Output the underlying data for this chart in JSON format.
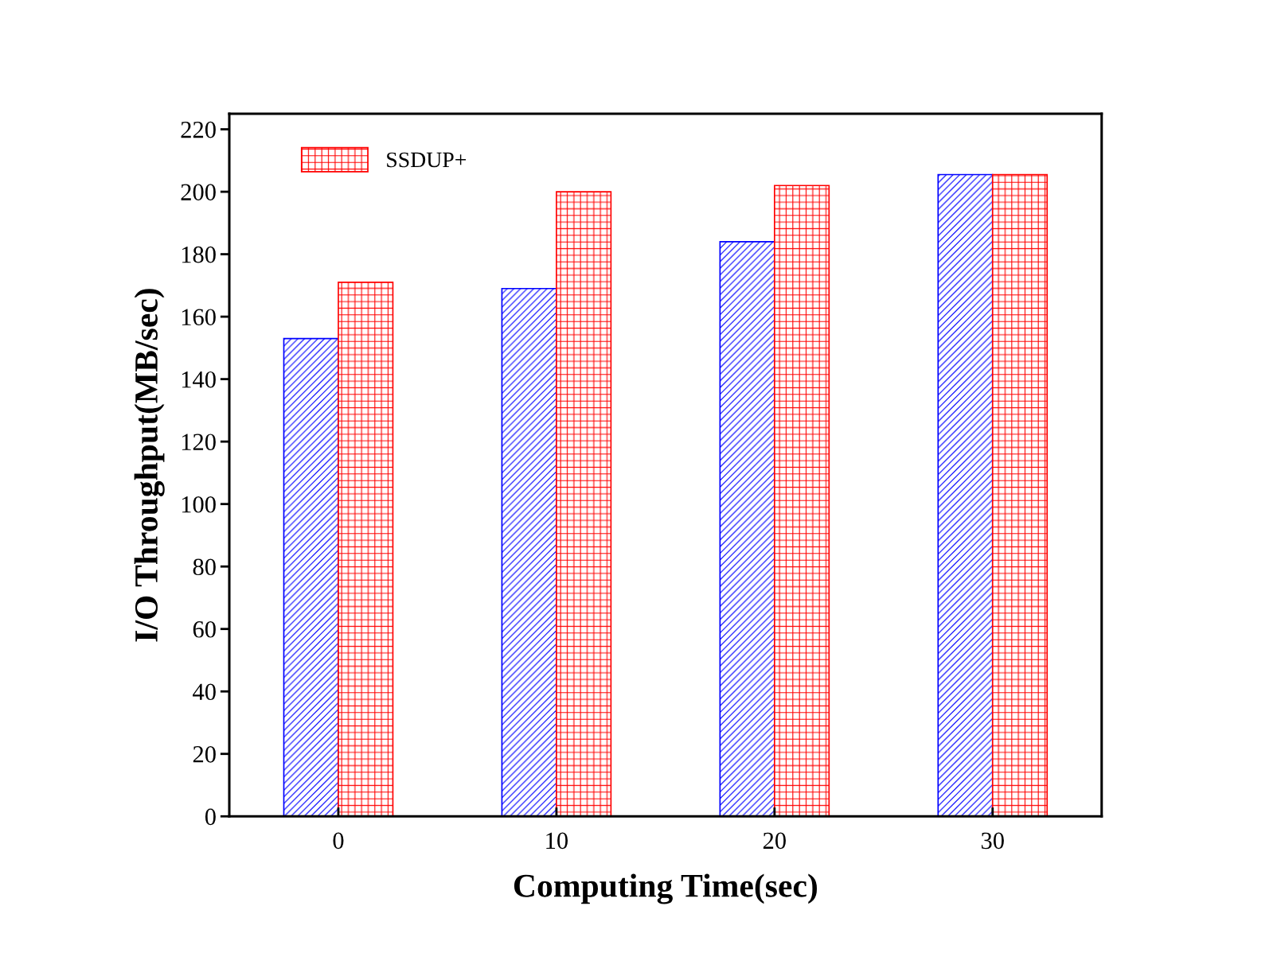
{
  "chart_data": {
    "type": "bar",
    "xlabel": "Computing Time(sec)",
    "ylabel": "I/O Throughput(MB/sec)",
    "categories": [
      "0",
      "10",
      "20",
      "30"
    ],
    "series": [
      {
        "color": "#0000ff",
        "values": [
          153,
          169,
          184,
          205.5
        ]
      },
      {
        "name": "SSDUP+",
        "color": "#ff0000",
        "values": [
          171,
          200,
          202,
          205.5
        ]
      }
    ],
    "ylim": [
      0,
      225
    ],
    "yticks": [
      0,
      20,
      40,
      60,
      80,
      100,
      120,
      140,
      160,
      180,
      200,
      220
    ],
    "grid": false,
    "legend": "top left"
  }
}
